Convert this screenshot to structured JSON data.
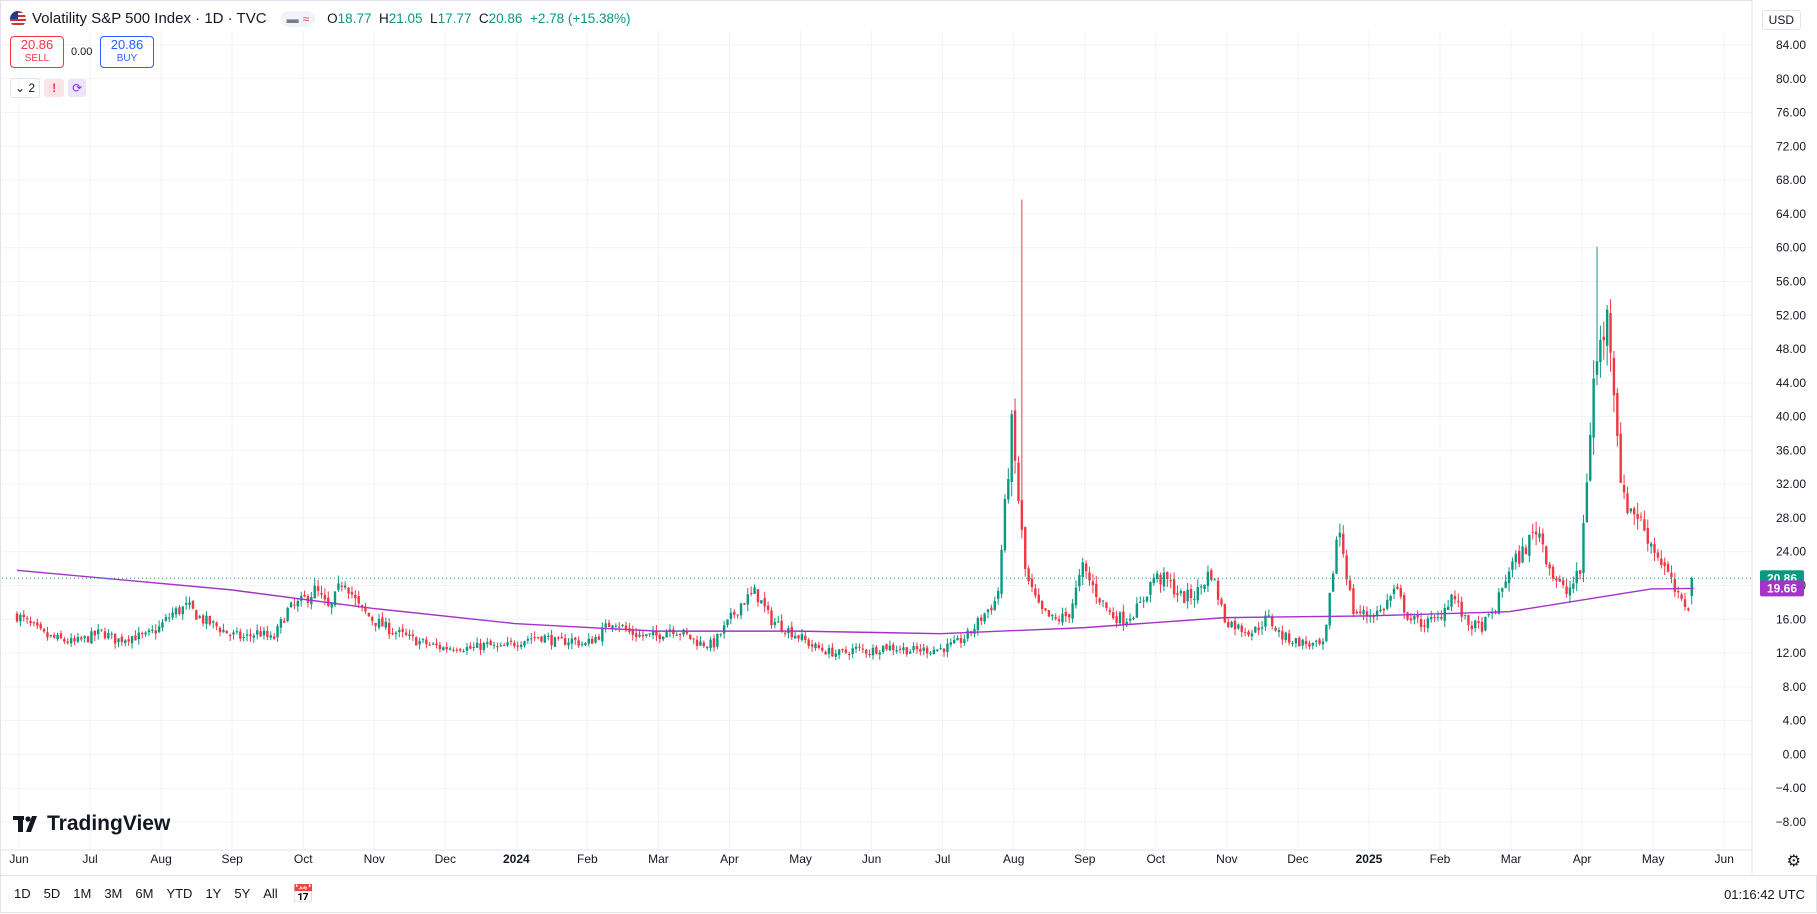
{
  "header": {
    "symbol_title": "Volatility S&P 500 Index · 1D · TVC",
    "ohlc": {
      "o_label": "O",
      "o": "18.77",
      "h_label": "H",
      "h": "21.05",
      "l_label": "L",
      "l": "17.77",
      "c_label": "C",
      "c": "20.86",
      "change": "+2.78 (+15.38%)"
    },
    "sell": {
      "price": "20.86",
      "label": "SELL"
    },
    "buy": {
      "price": "20.86",
      "label": "BUY"
    },
    "spread": "0.00",
    "indicator_count": "2",
    "alert_icon": "!",
    "currency": "USD"
  },
  "colors": {
    "up": "#089981",
    "down": "#f23645",
    "ma": "#a532c9",
    "grid": "#f0f3fa",
    "accent": "#2962ff"
  },
  "icons": [
    "us-flag-icon",
    "chevron-down-icon",
    "alert-icon",
    "sync-icon",
    "calendar-icon",
    "gear-icon",
    "tradingview-logo-icon"
  ],
  "chart_data": {
    "type": "candlestick",
    "y_axis": {
      "min": -8,
      "max": 84,
      "step": 4,
      "ticks": [
        "84.00",
        "80.00",
        "76.00",
        "72.00",
        "68.00",
        "64.00",
        "60.00",
        "56.00",
        "52.00",
        "48.00",
        "44.00",
        "40.00",
        "36.00",
        "32.00",
        "28.00",
        "24.00",
        "20.00",
        "16.00",
        "12.00",
        "8.00",
        "4.00",
        "0.00",
        "−4.00",
        "−8.00"
      ]
    },
    "x_axis": {
      "labels": [
        {
          "t": "Jun",
          "pos": 0
        },
        {
          "t": "Jul",
          "pos": 1
        },
        {
          "t": "Aug",
          "pos": 2
        },
        {
          "t": "Sep",
          "pos": 3
        },
        {
          "t": "Oct",
          "pos": 4
        },
        {
          "t": "Nov",
          "pos": 5
        },
        {
          "t": "Dec",
          "pos": 6
        },
        {
          "t": "2024",
          "pos": 7,
          "bold": true
        },
        {
          "t": "Feb",
          "pos": 8
        },
        {
          "t": "Mar",
          "pos": 9
        },
        {
          "t": "Apr",
          "pos": 10
        },
        {
          "t": "May",
          "pos": 11
        },
        {
          "t": "Jun",
          "pos": 12
        },
        {
          "t": "Jul",
          "pos": 13
        },
        {
          "t": "Aug",
          "pos": 14
        },
        {
          "t": "Sep",
          "pos": 15
        },
        {
          "t": "Oct",
          "pos": 16
        },
        {
          "t": "Nov",
          "pos": 17
        },
        {
          "t": "Dec",
          "pos": 18
        },
        {
          "t": "2025",
          "pos": 19,
          "bold": true
        },
        {
          "t": "Feb",
          "pos": 20
        },
        {
          "t": "Mar",
          "pos": 21
        },
        {
          "t": "Apr",
          "pos": 22
        },
        {
          "t": "May",
          "pos": 23
        },
        {
          "t": "Jun",
          "pos": 24
        }
      ]
    },
    "closes_monthly": [
      {
        "m": 0,
        "v": [
          16.5,
          15.2,
          14.0,
          13.6,
          13.2
        ]
      },
      {
        "m": 1,
        "v": [
          13.8,
          14.5,
          13.5,
          14.0,
          13.9
        ]
      },
      {
        "m": 2,
        "v": [
          15.0,
          16.8,
          17.5,
          16.0,
          15.2
        ]
      },
      {
        "m": 3,
        "v": [
          14.2,
          13.8,
          14.5,
          13.5,
          17.0
        ]
      },
      {
        "m": 4,
        "v": [
          18.0,
          19.5,
          17.0,
          21.0,
          17.5
        ]
      },
      {
        "m": 5,
        "v": [
          16.0,
          15.0,
          14.2,
          13.5,
          13.0
        ]
      },
      {
        "m": 6,
        "v": [
          12.6,
          12.8,
          12.5,
          13.0,
          12.5
        ]
      },
      {
        "m": 7,
        "v": [
          13.2,
          13.8,
          14.0,
          13.2,
          13.6
        ]
      },
      {
        "m": 8,
        "v": [
          13.0,
          14.2,
          16.0,
          14.5,
          14.0
        ]
      },
      {
        "m": 9,
        "v": [
          14.0,
          15.0,
          14.2,
          13.2,
          13.0
        ]
      },
      {
        "m": 10,
        "v": [
          15.5,
          18.0,
          19.2,
          16.0,
          15.0
        ]
      },
      {
        "m": 11,
        "v": [
          14.0,
          12.8,
          12.2,
          11.9,
          12.5
        ]
      },
      {
        "m": 12,
        "v": [
          12.2,
          12.8,
          12.6,
          12.3,
          12.4
        ]
      },
      {
        "m": 13,
        "v": [
          12.5,
          13.0,
          14.2,
          16.5,
          18.5
        ]
      },
      {
        "m": 14,
        "v": [
          38.6,
          21.0,
          17.0,
          15.8,
          16.5
        ]
      },
      {
        "m": 15,
        "v": [
          22.0,
          19.0,
          16.5,
          16.0,
          17.5
        ]
      },
      {
        "m": 16,
        "v": [
          21.0,
          20.5,
          18.5,
          19.0,
          21.8
        ]
      },
      {
        "m": 17,
        "v": [
          16.0,
          15.0,
          14.5,
          16.2,
          14.0
        ]
      },
      {
        "m": 18,
        "v": [
          13.4,
          13.0,
          12.8,
          27.5,
          17.0
        ]
      },
      {
        "m": 19,
        "v": [
          16.5,
          17.0,
          19.5,
          16.0,
          15.5
        ]
      },
      {
        "m": 20,
        "v": [
          16.0,
          19.0,
          15.5,
          15.0,
          17.0
        ]
      },
      {
        "m": 21,
        "v": [
          22.0,
          24.0,
          27.0,
          21.5,
          19.0
        ]
      },
      {
        "m": 22,
        "v": [
          21.5,
          45.3,
          52.3,
          30.0,
          28.5
        ]
      },
      {
        "m": 23,
        "v": [
          25.0,
          22.0,
          18.0,
          17.5,
          20.86
        ]
      }
    ],
    "spikes": [
      {
        "m": 14.12,
        "high": 65.7,
        "low": 16.0
      },
      {
        "m": 22.25,
        "high": 60.1,
        "low": 21.0
      }
    ],
    "moving_average": {
      "start": 21.8,
      "points": [
        [
          0,
          21.8
        ],
        [
          3,
          19.5
        ],
        [
          5,
          17.3
        ],
        [
          7,
          15.5
        ],
        [
          9,
          14.6
        ],
        [
          11,
          14.6
        ],
        [
          13,
          14.3
        ],
        [
          15,
          15.0
        ],
        [
          17,
          16.2
        ],
        [
          19,
          16.4
        ],
        [
          21,
          16.9
        ],
        [
          23,
          19.6
        ],
        [
          23.6,
          19.66
        ]
      ]
    },
    "last_price": {
      "value": 20.86,
      "label": "20.86"
    },
    "ma_price": {
      "value": 19.66,
      "label": "19.66"
    }
  },
  "watermark": "TradingView",
  "bottom_bar": {
    "ranges": [
      "1D",
      "5D",
      "1M",
      "3M",
      "6M",
      "YTD",
      "1Y",
      "5Y",
      "All"
    ],
    "clock": "01:16:42 UTC"
  }
}
